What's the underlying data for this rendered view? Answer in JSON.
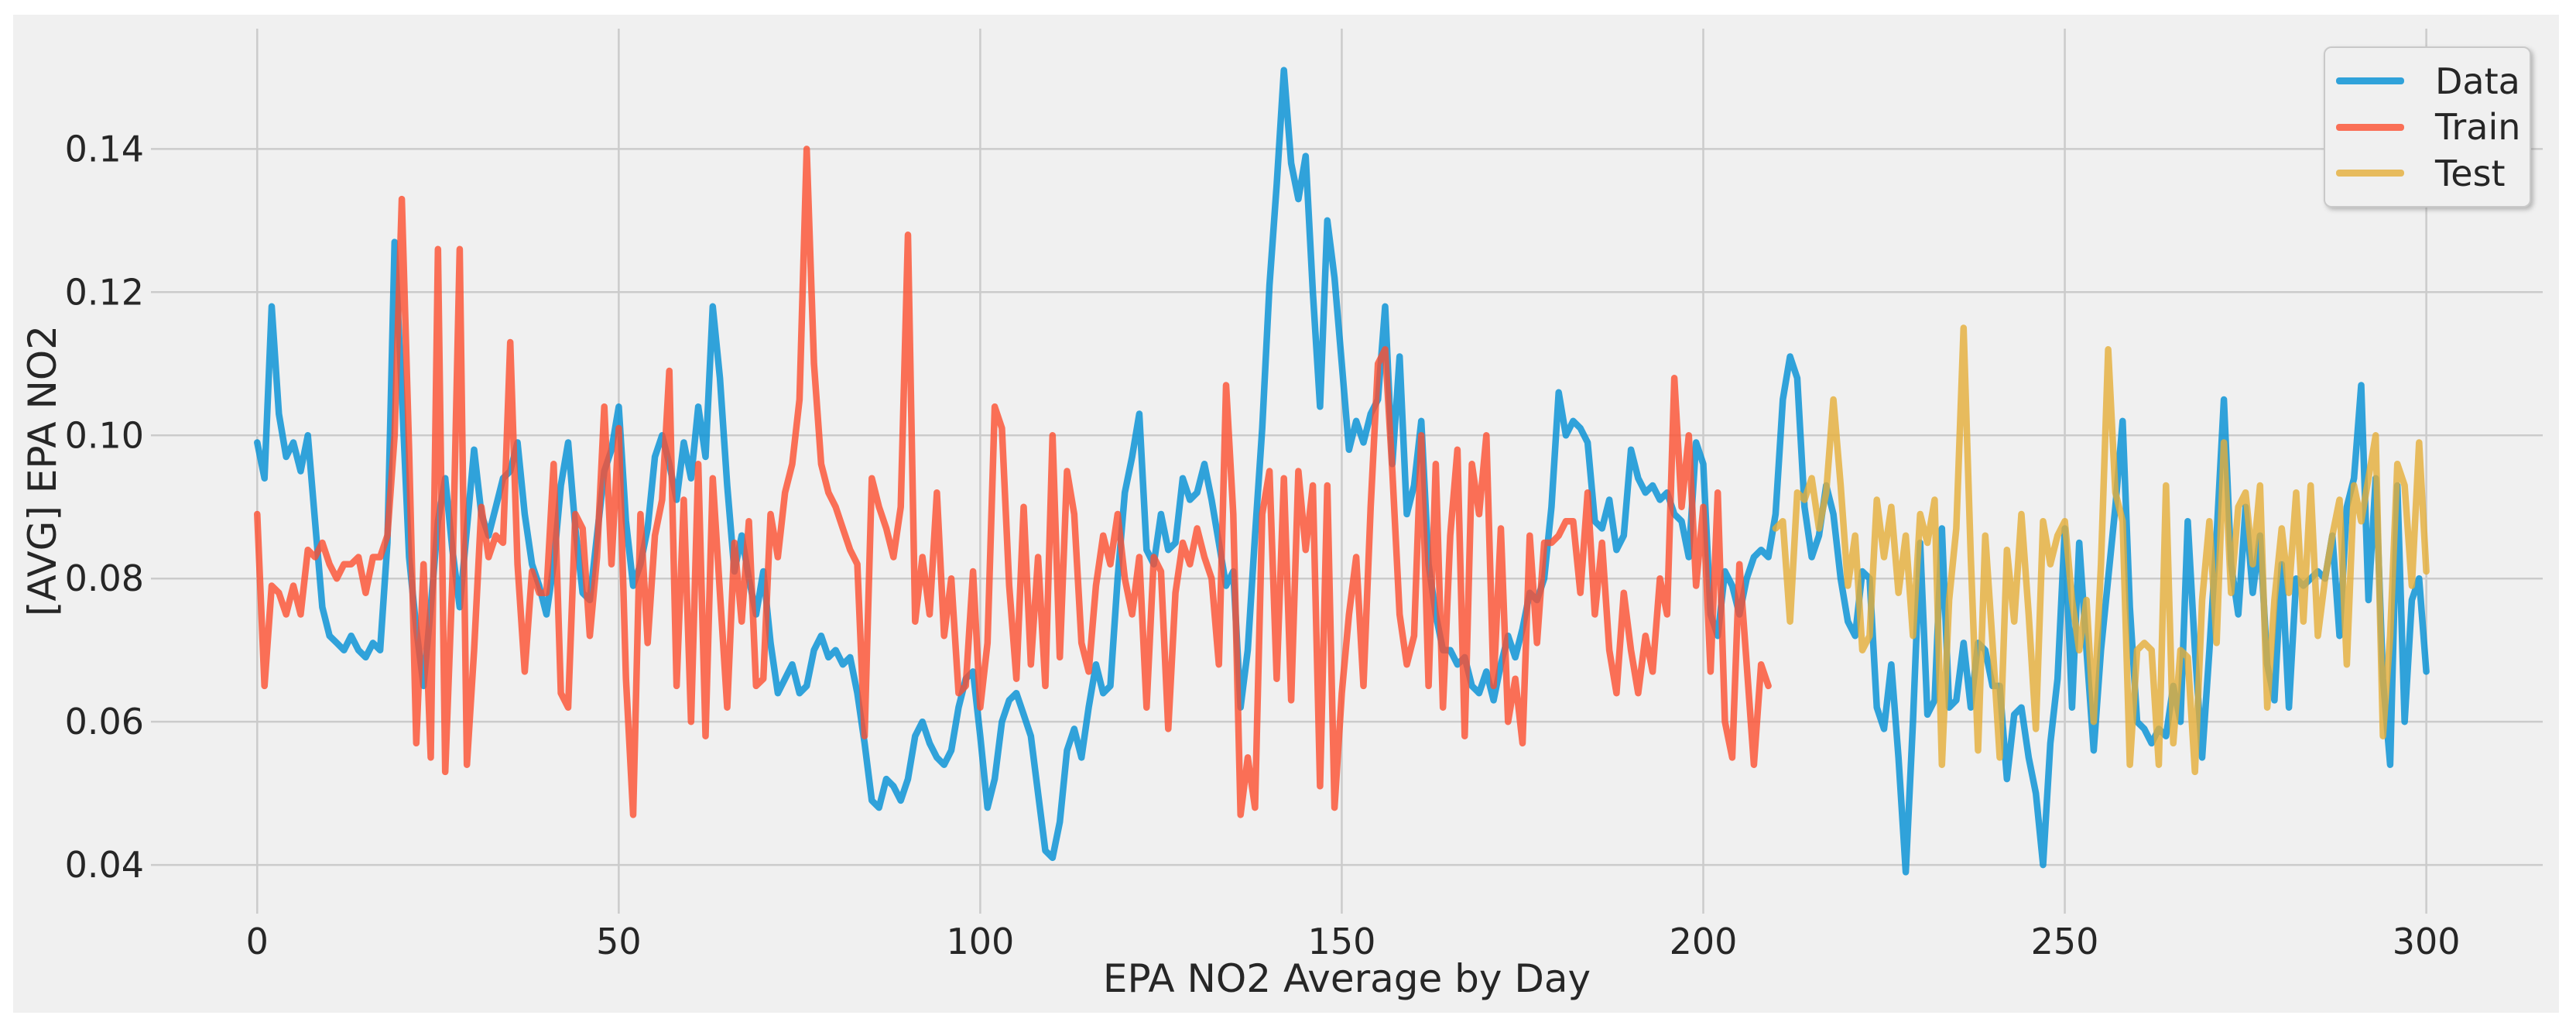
{
  "figure": {
    "background": "#ffffff",
    "panel_background": "#f0f0f0",
    "grid_color": "#cbcbcb",
    "text_color": "#262626",
    "line_opacity": 0.8
  },
  "chart_data": {
    "type": "line",
    "title": "",
    "xlabel": "EPA NO2 Average by Day",
    "ylabel": "[AVG] EPA NO2",
    "grid": true,
    "legend_position": "upper right",
    "xlim": [
      -14.7,
      316.1
    ],
    "ylim": [
      0.0332,
      0.1568
    ],
    "x_ticks": [
      0,
      50,
      100,
      150,
      200,
      250,
      300
    ],
    "x_tick_labels": [
      "0",
      "50",
      "100",
      "150",
      "200",
      "250",
      "300"
    ],
    "y_ticks": [
      0.04,
      0.06,
      0.08,
      0.1,
      0.12,
      0.14
    ],
    "y_tick_labels": [
      "0.04",
      "0.06",
      "0.08",
      "0.10",
      "0.12",
      "0.14"
    ],
    "series": [
      {
        "name": "Data",
        "color": "#008fd5",
        "x_start": 0,
        "values": [
          0.099,
          0.094,
          0.118,
          0.103,
          0.097,
          0.099,
          0.095,
          0.1,
          0.088,
          0.076,
          0.072,
          0.071,
          0.07,
          0.072,
          0.07,
          0.069,
          0.071,
          0.07,
          0.085,
          0.127,
          0.106,
          0.083,
          0.073,
          0.065,
          0.076,
          0.088,
          0.094,
          0.084,
          0.076,
          0.087,
          0.098,
          0.089,
          0.086,
          0.09,
          0.094,
          0.095,
          0.099,
          0.089,
          0.082,
          0.079,
          0.075,
          0.082,
          0.093,
          0.099,
          0.087,
          0.078,
          0.077,
          0.086,
          0.095,
          0.098,
          0.104,
          0.088,
          0.079,
          0.082,
          0.087,
          0.097,
          0.1,
          0.096,
          0.091,
          0.099,
          0.094,
          0.104,
          0.097,
          0.118,
          0.108,
          0.093,
          0.081,
          0.086,
          0.08,
          0.075,
          0.081,
          0.071,
          0.064,
          0.066,
          0.068,
          0.064,
          0.065,
          0.07,
          0.072,
          0.069,
          0.07,
          0.068,
          0.069,
          0.064,
          0.057,
          0.049,
          0.048,
          0.052,
          0.051,
          0.049,
          0.052,
          0.058,
          0.06,
          0.057,
          0.055,
          0.054,
          0.056,
          0.062,
          0.066,
          0.067,
          0.058,
          0.048,
          0.052,
          0.06,
          0.063,
          0.064,
          0.061,
          0.058,
          0.05,
          0.042,
          0.041,
          0.046,
          0.056,
          0.059,
          0.055,
          0.062,
          0.068,
          0.064,
          0.065,
          0.08,
          0.092,
          0.097,
          0.103,
          0.084,
          0.082,
          0.089,
          0.084,
          0.085,
          0.094,
          0.091,
          0.092,
          0.096,
          0.091,
          0.085,
          0.079,
          0.081,
          0.062,
          0.07,
          0.086,
          0.101,
          0.121,
          0.135,
          0.151,
          0.138,
          0.133,
          0.139,
          0.12,
          0.104,
          0.13,
          0.122,
          0.11,
          0.098,
          0.102,
          0.099,
          0.103,
          0.105,
          0.118,
          0.096,
          0.111,
          0.089,
          0.093,
          0.102,
          0.082,
          0.075,
          0.07,
          0.07,
          0.068,
          0.069,
          0.065,
          0.064,
          0.067,
          0.063,
          0.068,
          0.072,
          0.069,
          0.073,
          0.078,
          0.077,
          0.08,
          0.09,
          0.106,
          0.1,
          0.102,
          0.101,
          0.099,
          0.088,
          0.087,
          0.091,
          0.084,
          0.086,
          0.098,
          0.094,
          0.092,
          0.093,
          0.091,
          0.092,
          0.089,
          0.088,
          0.083,
          0.099,
          0.096,
          0.075,
          0.072,
          0.081,
          0.079,
          0.075,
          0.08,
          0.083,
          0.084,
          0.083,
          0.089,
          0.105,
          0.111,
          0.108,
          0.09,
          0.083,
          0.086,
          0.093,
          0.089,
          0.08,
          0.074,
          0.072,
          0.081,
          0.08,
          0.062,
          0.059,
          0.068,
          0.055,
          0.039,
          0.06,
          0.085,
          0.061,
          0.063,
          0.087,
          0.062,
          0.063,
          0.071,
          0.062,
          0.071,
          0.07,
          0.065,
          0.065,
          0.052,
          0.061,
          0.062,
          0.055,
          0.05,
          0.04,
          0.057,
          0.066,
          0.087,
          0.062,
          0.085,
          0.07,
          0.056,
          0.07,
          0.08,
          0.09,
          0.102,
          0.076,
          0.06,
          0.059,
          0.057,
          0.059,
          0.058,
          0.065,
          0.06,
          0.088,
          0.07,
          0.055,
          0.07,
          0.086,
          0.105,
          0.082,
          0.075,
          0.09,
          0.078,
          0.086,
          0.068,
          0.063,
          0.082,
          0.062,
          0.08,
          0.079,
          0.08,
          0.081,
          0.08,
          0.086,
          0.072,
          0.09,
          0.094,
          0.107,
          0.077,
          0.094,
          0.066,
          0.054,
          0.093,
          0.06,
          0.077,
          0.08,
          0.067
        ]
      },
      {
        "name": "Train",
        "color": "#fc4f30",
        "x_start": 0,
        "values": [
          0.089,
          0.065,
          0.079,
          0.078,
          0.075,
          0.079,
          0.075,
          0.084,
          0.083,
          0.085,
          0.082,
          0.08,
          0.082,
          0.082,
          0.083,
          0.078,
          0.083,
          0.083,
          0.086,
          0.1,
          0.133,
          0.098,
          0.057,
          0.082,
          0.055,
          0.126,
          0.053,
          0.08,
          0.126,
          0.054,
          0.07,
          0.09,
          0.083,
          0.086,
          0.085,
          0.113,
          0.082,
          0.067,
          0.081,
          0.078,
          0.078,
          0.096,
          0.064,
          0.062,
          0.089,
          0.087,
          0.072,
          0.083,
          0.104,
          0.082,
          0.101,
          0.066,
          0.047,
          0.089,
          0.071,
          0.086,
          0.091,
          0.109,
          0.065,
          0.091,
          0.06,
          0.096,
          0.058,
          0.094,
          0.078,
          0.062,
          0.085,
          0.074,
          0.088,
          0.065,
          0.066,
          0.089,
          0.083,
          0.092,
          0.096,
          0.105,
          0.14,
          0.11,
          0.096,
          0.092,
          0.09,
          0.087,
          0.084,
          0.082,
          0.058,
          0.094,
          0.09,
          0.087,
          0.083,
          0.09,
          0.128,
          0.074,
          0.083,
          0.075,
          0.092,
          0.072,
          0.08,
          0.064,
          0.065,
          0.081,
          0.062,
          0.071,
          0.104,
          0.101,
          0.079,
          0.066,
          0.09,
          0.068,
          0.083,
          0.065,
          0.1,
          0.069,
          0.095,
          0.089,
          0.071,
          0.067,
          0.079,
          0.086,
          0.082,
          0.089,
          0.08,
          0.075,
          0.083,
          0.062,
          0.083,
          0.081,
          0.059,
          0.078,
          0.085,
          0.082,
          0.087,
          0.083,
          0.08,
          0.068,
          0.107,
          0.089,
          0.047,
          0.055,
          0.048,
          0.089,
          0.095,
          0.066,
          0.094,
          0.063,
          0.095,
          0.084,
          0.093,
          0.051,
          0.093,
          0.048,
          0.064,
          0.075,
          0.083,
          0.065,
          0.09,
          0.11,
          0.112,
          0.095,
          0.075,
          0.068,
          0.072,
          0.1,
          0.065,
          0.096,
          0.062,
          0.086,
          0.098,
          0.058,
          0.096,
          0.089,
          0.1,
          0.065,
          0.087,
          0.06,
          0.066,
          0.057,
          0.086,
          0.071,
          0.085,
          0.085,
          0.086,
          0.088,
          0.088,
          0.078,
          0.092,
          0.075,
          0.085,
          0.07,
          0.064,
          0.078,
          0.07,
          0.064,
          0.072,
          0.067,
          0.08,
          0.075,
          0.108,
          0.09,
          0.1,
          0.079,
          0.09,
          0.067,
          0.092,
          0.06,
          0.055,
          0.082,
          0.068,
          0.054,
          0.068,
          0.065
        ]
      },
      {
        "name": "Test",
        "color": "#e5ae38",
        "x_start": 210,
        "values": [
          0.087,
          0.088,
          0.074,
          0.092,
          0.091,
          0.094,
          0.087,
          0.092,
          0.105,
          0.093,
          0.079,
          0.086,
          0.07,
          0.072,
          0.091,
          0.083,
          0.09,
          0.078,
          0.086,
          0.072,
          0.089,
          0.085,
          0.091,
          0.054,
          0.077,
          0.087,
          0.115,
          0.083,
          0.056,
          0.086,
          0.071,
          0.055,
          0.084,
          0.074,
          0.089,
          0.075,
          0.059,
          0.088,
          0.082,
          0.086,
          0.088,
          0.077,
          0.07,
          0.077,
          0.06,
          0.082,
          0.112,
          0.092,
          0.088,
          0.054,
          0.07,
          0.071,
          0.07,
          0.054,
          0.093,
          0.057,
          0.07,
          0.069,
          0.053,
          0.077,
          0.088,
          0.071,
          0.099,
          0.078,
          0.09,
          0.092,
          0.082,
          0.093,
          0.062,
          0.077,
          0.087,
          0.078,
          0.092,
          0.074,
          0.093,
          0.072,
          0.08,
          0.086,
          0.091,
          0.068,
          0.093,
          0.088,
          0.094,
          0.1,
          0.058,
          0.072,
          0.096,
          0.093,
          0.079,
          0.099,
          0.081
        ]
      }
    ]
  },
  "legend": {
    "items": [
      {
        "label": "Data"
      },
      {
        "label": "Train"
      },
      {
        "label": "Test"
      }
    ]
  }
}
